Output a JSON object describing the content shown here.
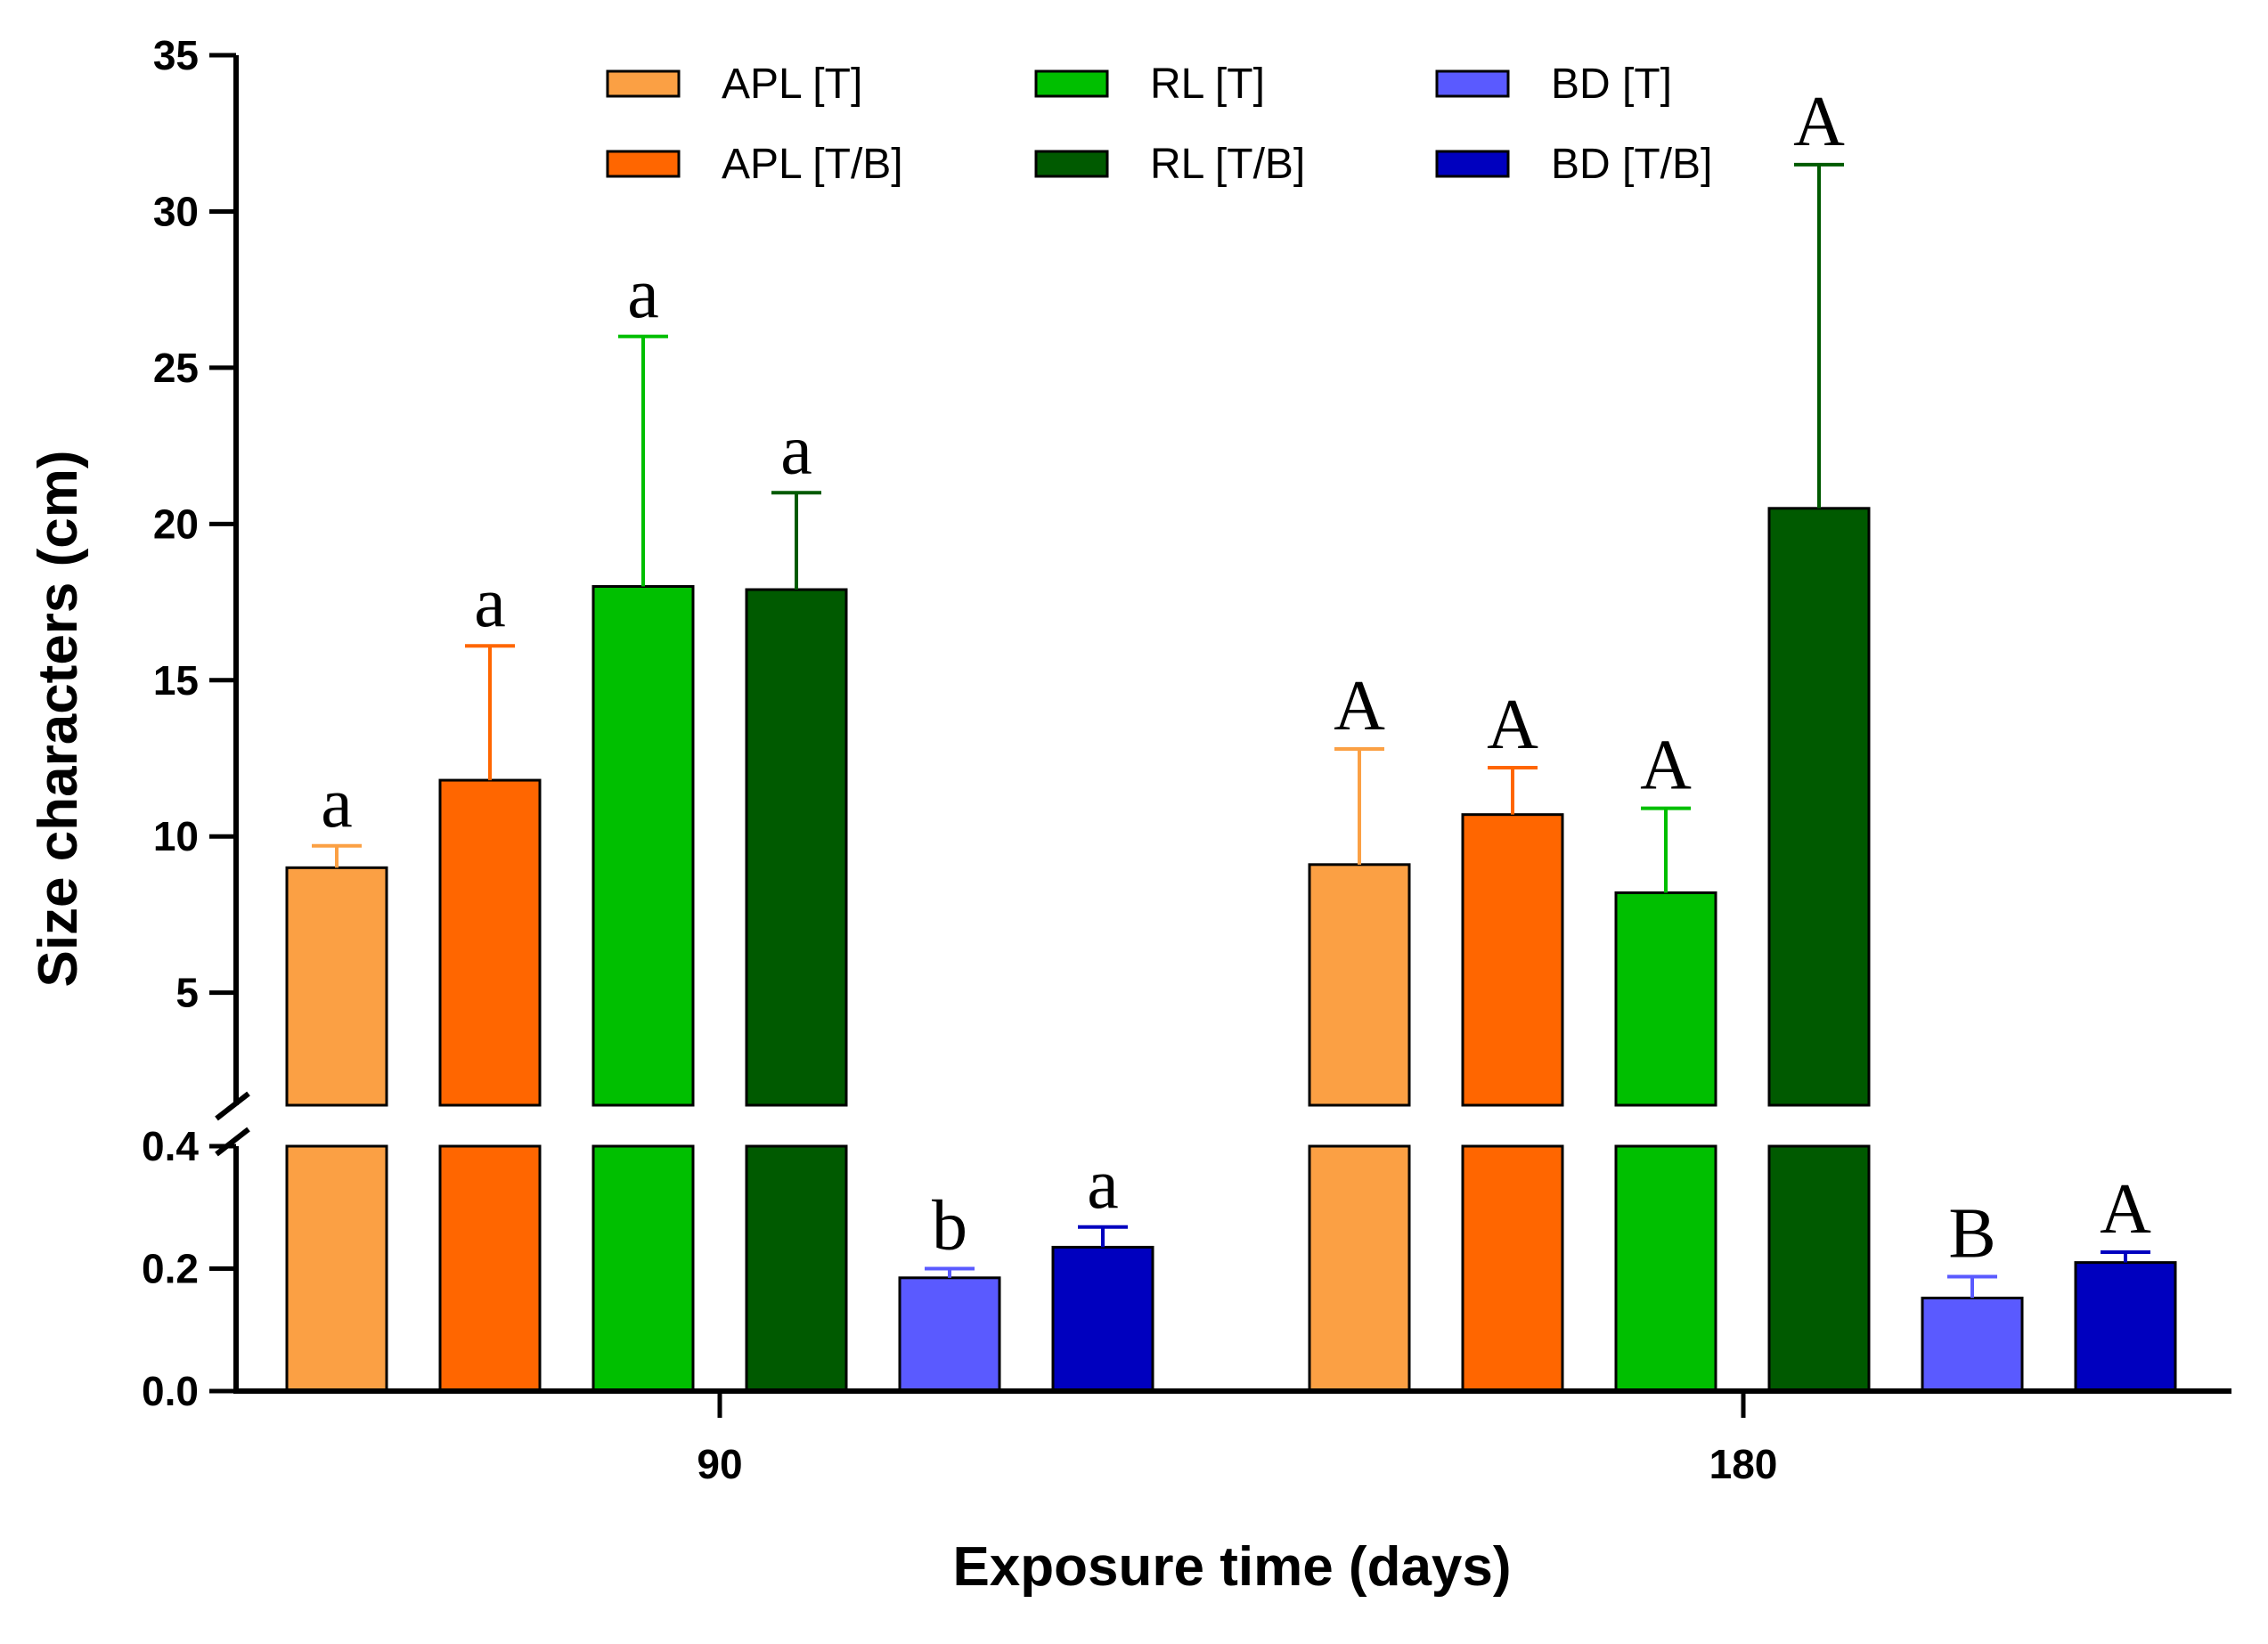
{
  "chart_data": {
    "type": "bar",
    "xlabel": "Exposure time (days)",
    "ylabel": "Size characters (cm)",
    "categories": [
      "90",
      "180"
    ],
    "y_axis_segments": {
      "lower": {
        "range": [
          0,
          0.4
        ],
        "ticks": [
          "0.0",
          "0.2",
          "0.4"
        ]
      },
      "upper": {
        "range": [
          1.4,
          35
        ],
        "ticks": [
          "5",
          "10",
          "15",
          "20",
          "25",
          "30",
          "35"
        ]
      },
      "axis_break": true
    },
    "series": [
      {
        "name": "APL [T]",
        "color": "#FBA044",
        "values": [
          9.0,
          9.1
        ],
        "error": [
          0.7,
          3.7
        ],
        "letters": [
          "a",
          "A"
        ]
      },
      {
        "name": "APL [T/B]",
        "color": "#FF6600",
        "values": [
          11.8,
          10.7
        ],
        "error": [
          4.3,
          1.5
        ],
        "letters": [
          "a",
          "A"
        ]
      },
      {
        "name": "RL [T]",
        "color": "#00BF00",
        "values": [
          18.0,
          8.2
        ],
        "error": [
          8.0,
          2.7
        ],
        "letters": [
          "a",
          "A"
        ]
      },
      {
        "name": "RL [T/B]",
        "color": "#005A00",
        "values": [
          17.9,
          20.5
        ],
        "error": [
          3.1,
          11.0
        ],
        "letters": [
          "a",
          "A"
        ]
      },
      {
        "name": "BD [T]",
        "color": "#5A5AFF",
        "values": [
          0.185,
          0.152
        ],
        "error": [
          0.015,
          0.035
        ],
        "letters": [
          "b",
          "B"
        ]
      },
      {
        "name": "BD [T/B]",
        "color": "#0000BF",
        "values": [
          0.235,
          0.21
        ],
        "error": [
          0.033,
          0.017
        ],
        "letters": [
          "a",
          "A"
        ]
      }
    ]
  }
}
